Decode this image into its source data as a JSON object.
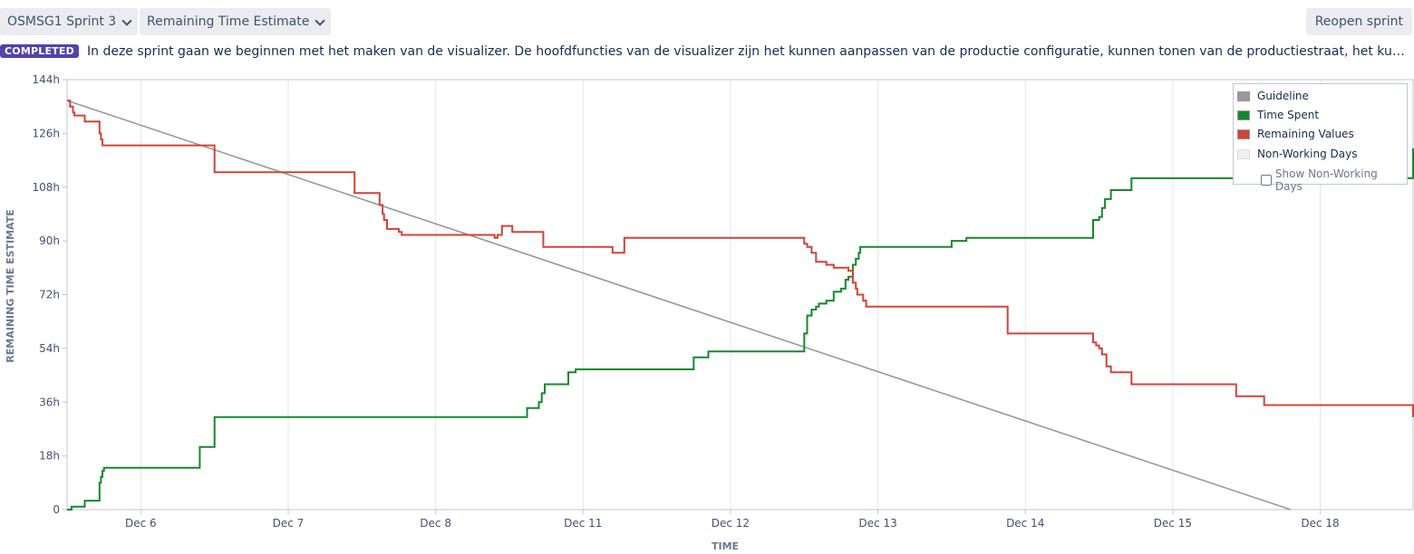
{
  "toolbar": {
    "sprint_select": "OSMSG1 Sprint 3",
    "chart_select": "Remaining Time Estimate",
    "reopen_button": "Reopen sprint"
  },
  "sprint": {
    "status": "COMPLETED",
    "goal": "In deze sprint gaan we beginnen met het maken van de visualizer. De hoofdfuncties van de visualizer zijn het kunnen aanpassen van de productie configuratie, kunnen tonen van de productiestraat, het kunnen opslaan en..."
  },
  "legend": {
    "guideline": "Guideline",
    "time_spent": "Time Spent",
    "remaining": "Remaining Values",
    "non_working": "Non-Working Days",
    "show_non_working": "Show Non-Working Days"
  },
  "colors": {
    "guideline": "#999999",
    "time_spent": "#14892c",
    "remaining": "#d04437",
    "non_working": "#f0f0f0"
  },
  "chart_data": {
    "type": "line",
    "xlabel": "TIME",
    "ylabel": "REMAINING TIME ESTIMATE",
    "ylim": [
      0,
      144
    ],
    "yticks": [
      0,
      18,
      36,
      54,
      72,
      90,
      108,
      126,
      144
    ],
    "ytick_labels": [
      "0",
      "18h",
      "36h",
      "54h",
      "72h",
      "90h",
      "108h",
      "126h",
      "144h"
    ],
    "xlim": [
      0,
      9.13
    ],
    "xticks": [
      0.5,
      1.5,
      2.5,
      3.5,
      4.5,
      5.5,
      6.5,
      7.5,
      8.5
    ],
    "xtick_labels": [
      "Dec 6",
      "Dec 7",
      "Dec 8",
      "Dec 11",
      "Dec 12",
      "Dec 13",
      "Dec 14",
      "Dec 15",
      "Dec 18"
    ],
    "grid": "vertical",
    "legend_position": "top-right",
    "series": [
      {
        "name": "Guideline",
        "x": [
          0.0,
          8.3
        ],
        "y": [
          137,
          0
        ]
      },
      {
        "name": "Time Spent",
        "step": true,
        "x": [
          0.0,
          0.03,
          0.12,
          0.22,
          0.22,
          0.23,
          0.24,
          0.25,
          0.9,
          1.0,
          3.0,
          3.12,
          3.2,
          3.22,
          3.24,
          3.4,
          3.45,
          3.7,
          4.25,
          4.28,
          4.35,
          5.0,
          5.0,
          5.02,
          5.05,
          5.08,
          5.1,
          5.15,
          5.2,
          5.25,
          5.28,
          5.3,
          5.33,
          5.35,
          5.37,
          5.38,
          6.0,
          6.1,
          6.95,
          6.96,
          7.0,
          7.02,
          7.04,
          7.08,
          7.22,
          9.13
        ],
        "y": [
          0,
          1,
          3,
          6,
          9,
          11,
          13,
          14,
          21,
          31,
          31,
          34,
          36,
          39,
          42,
          46,
          47,
          47,
          51,
          51,
          53,
          57,
          59,
          65,
          67,
          68,
          69,
          70,
          73,
          74,
          77,
          78,
          82,
          84,
          86,
          88,
          90,
          91,
          91,
          97,
          98,
          101,
          104,
          107,
          111,
          121
        ]
      },
      {
        "name": "Remaining Values",
        "step": true,
        "x": [
          0.0,
          0.02,
          0.04,
          0.05,
          0.12,
          0.22,
          0.23,
          0.24,
          0.9,
          1.0,
          1.95,
          2.12,
          2.14,
          2.15,
          2.17,
          2.25,
          2.27,
          2.9,
          2.92,
          2.95,
          3.02,
          3.23,
          3.68,
          3.7,
          3.78,
          5.0,
          5.02,
          5.05,
          5.08,
          5.15,
          5.2,
          5.3,
          5.33,
          5.35,
          5.36,
          5.4,
          5.42,
          6.38,
          6.95,
          6.96,
          6.98,
          7.0,
          7.02,
          7.05,
          7.08,
          7.22,
          7.93,
          8.0,
          8.12,
          9.13
        ],
        "y": [
          137,
          135,
          133,
          132,
          130,
          126,
          124,
          122,
          122,
          113,
          106,
          102,
          99,
          97,
          94,
          93,
          92,
          91,
          92,
          95,
          93,
          88,
          88,
          86,
          91,
          89,
          88,
          86,
          83,
          82,
          81,
          80,
          76,
          74,
          72,
          70,
          68,
          59,
          59,
          56,
          55,
          54,
          52,
          48,
          46,
          42,
          38,
          38,
          35,
          31
        ]
      }
    ]
  }
}
